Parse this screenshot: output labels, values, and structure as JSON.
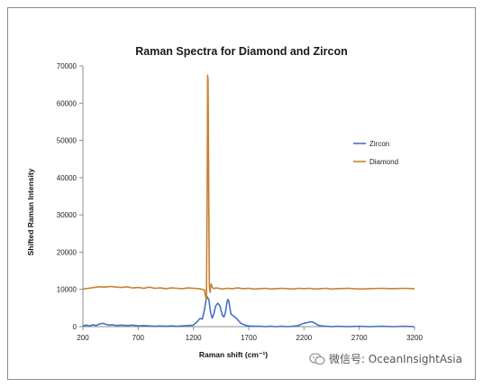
{
  "chart_data": {
    "type": "line",
    "title": "Raman Spectra for Diamond and Zircon",
    "xlabel": "Raman shift (cm⁻¹)",
    "ylabel": "Shifted Raman Intensity",
    "xlim": [
      200,
      3200
    ],
    "ylim": [
      0,
      70000
    ],
    "xticks": [
      200,
      700,
      1200,
      1700,
      2200,
      2700,
      3200
    ],
    "yticks": [
      0,
      10000,
      20000,
      30000,
      40000,
      50000,
      60000,
      70000
    ],
    "grid": false,
    "legend_position": "right",
    "series": [
      {
        "name": "Zircon",
        "color": "#4472C4",
        "x": [
          200,
          230,
          260,
          290,
          320,
          350,
          380,
          410,
          440,
          470,
          500,
          550,
          600,
          650,
          700,
          750,
          800,
          850,
          900,
          950,
          1000,
          1050,
          1100,
          1150,
          1200,
          1230,
          1260,
          1280,
          1300,
          1320,
          1340,
          1355,
          1370,
          1385,
          1400,
          1420,
          1440,
          1460,
          1475,
          1490,
          1500,
          1510,
          1520,
          1530,
          1540,
          1555,
          1570,
          1590,
          1610,
          1630,
          1650,
          1680,
          1700,
          1750,
          1800,
          1850,
          1900,
          1950,
          2000,
          2050,
          2100,
          2150,
          2180,
          2200,
          2230,
          2260,
          2280,
          2300,
          2320,
          2340,
          2360,
          2400,
          2450,
          2500,
          2600,
          2700,
          2800,
          2900,
          3000,
          3100,
          3200
        ],
        "y": [
          200,
          400,
          200,
          500,
          300,
          700,
          900,
          600,
          400,
          500,
          300,
          400,
          300,
          400,
          200,
          300,
          200,
          100,
          200,
          100,
          200,
          100,
          200,
          300,
          400,
          1200,
          2200,
          2000,
          4500,
          8200,
          7200,
          3800,
          2300,
          3500,
          5500,
          6300,
          5600,
          3100,
          2600,
          3800,
          6000,
          7300,
          7000,
          5000,
          3400,
          3000,
          2700,
          2200,
          1500,
          900,
          600,
          300,
          200,
          100,
          100,
          0,
          100,
          0,
          100,
          0,
          100,
          300,
          700,
          900,
          1100,
          1300,
          1200,
          900,
          500,
          300,
          200,
          100,
          0,
          100,
          0,
          100,
          0,
          100,
          0,
          100,
          0
        ]
      },
      {
        "name": "Diamond",
        "color": "#C7822F",
        "x": [
          200,
          250,
          300,
          350,
          400,
          450,
          500,
          550,
          600,
          650,
          700,
          750,
          800,
          850,
          900,
          950,
          1000,
          1050,
          1100,
          1150,
          1200,
          1250,
          1280,
          1300,
          1310,
          1318,
          1324,
          1328,
          1332,
          1336,
          1340,
          1344,
          1350,
          1360,
          1370,
          1380,
          1390,
          1400,
          1430,
          1460,
          1500,
          1550,
          1600,
          1650,
          1700,
          1750,
          1800,
          1850,
          1900,
          1950,
          2000,
          2050,
          2100,
          2150,
          2200,
          2250,
          2300,
          2350,
          2400,
          2450,
          2500,
          2600,
          2700,
          2800,
          2900,
          3000,
          3100,
          3200
        ],
        "y": [
          10100,
          10300,
          10500,
          10700,
          10600,
          10800,
          10600,
          10500,
          10700,
          10400,
          10500,
          10300,
          10600,
          10300,
          10400,
          10200,
          10400,
          10300,
          10200,
          10400,
          10300,
          10200,
          10000,
          9800,
          8000,
          7500,
          35000,
          67500,
          66000,
          50000,
          30000,
          11000,
          9200,
          11500,
          10700,
          10300,
          10200,
          10400,
          10300,
          10100,
          10300,
          10200,
          10400,
          10200,
          10300,
          10100,
          10200,
          10300,
          10100,
          10200,
          10300,
          10200,
          10100,
          10300,
          10200,
          10300,
          10100,
          10200,
          10300,
          10100,
          10200,
          10300,
          10100,
          10200,
          10300,
          10200,
          10300,
          10200
        ]
      }
    ]
  },
  "watermark": "微信号: OceanInsightAsia"
}
